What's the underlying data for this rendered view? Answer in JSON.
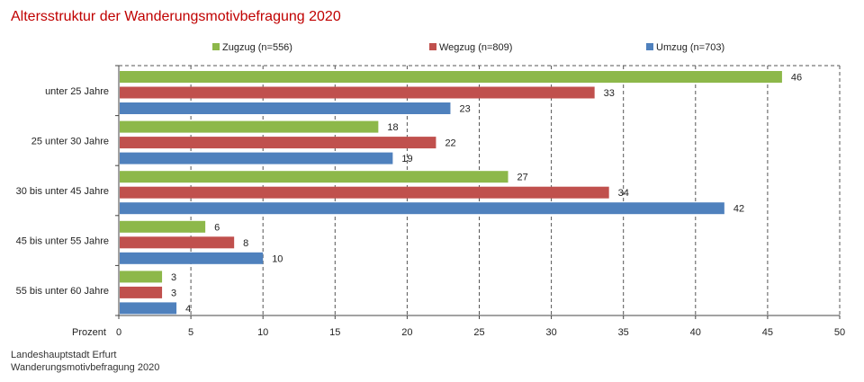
{
  "title": "Altersstruktur der Wanderungsmotivbefragung 2020",
  "source": {
    "line1": "Landeshauptstadt Erfurt",
    "line2": "Wanderungsmotivbefragung 2020"
  },
  "chart_data": {
    "type": "bar",
    "orientation": "horizontal",
    "title": "Altersstruktur der Wanderungsmotivbefragung 2020",
    "xlabel": "Prozent",
    "ylabel": "",
    "xlim": [
      0,
      50
    ],
    "xticks": [
      0,
      5,
      10,
      15,
      20,
      25,
      30,
      35,
      40,
      45,
      50
    ],
    "grid": "vertical dashed",
    "legend": "top",
    "categories": [
      "unter 25 Jahre",
      "25 unter 30 Jahre",
      "30 bis unter 45 Jahre",
      "45 bis unter 55 Jahre",
      "55 bis unter 60 Jahre"
    ],
    "series": [
      {
        "name": "Zugzug (n=556)",
        "color": "#8db84a",
        "values": [
          46,
          18,
          27,
          6,
          3
        ]
      },
      {
        "name": "Wegzug (n=809)",
        "color": "#c0504d",
        "values": [
          33,
          22,
          34,
          8,
          3
        ]
      },
      {
        "name": "Umzug (n=703)",
        "color": "#4f81bd",
        "values": [
          23,
          19,
          42,
          10,
          4
        ]
      }
    ]
  }
}
